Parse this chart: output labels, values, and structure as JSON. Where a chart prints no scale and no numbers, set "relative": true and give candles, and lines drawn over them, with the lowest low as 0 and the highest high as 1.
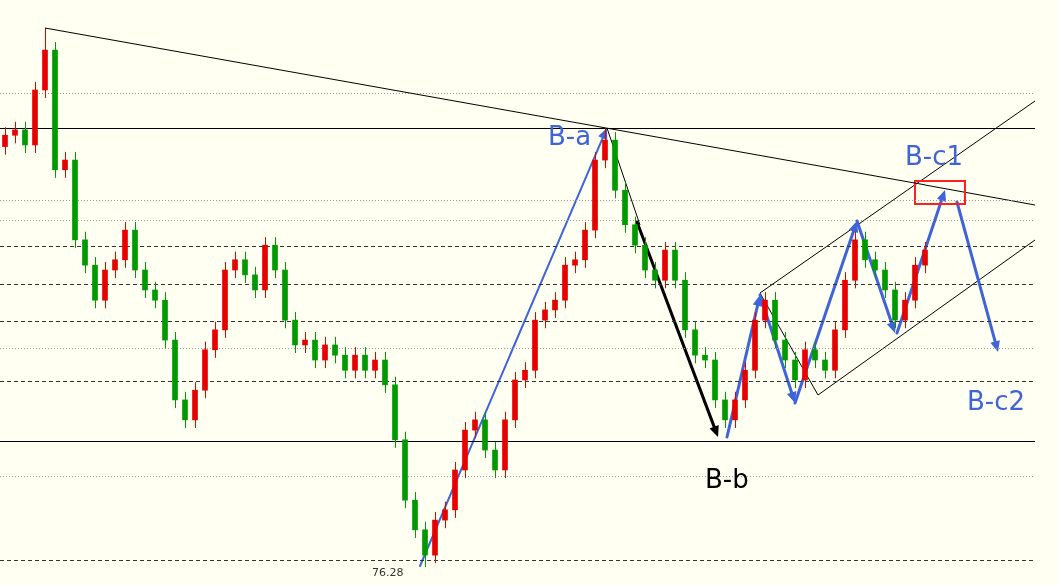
{
  "chart_data": {
    "type": "candlestick",
    "relative": true,
    "legend": false,
    "tick_labels": false,
    "colors": [
      "#e60000",
      "#e60000",
      "#009a00",
      "#e60000",
      "#e60000",
      "#009a00",
      "#e60000",
      "#009a00",
      "#009a00",
      "#009a00",
      "#e60000",
      "#e60000",
      "#e60000",
      "#009a00",
      "#009a00",
      "#009a00",
      "#009a00",
      "#009a00",
      "#009a00",
      "#e60000",
      "#e60000",
      "#e60000",
      "#e60000",
      "#e60000",
      "#009a00",
      "#009a00",
      "#e60000",
      "#009a00",
      "#009a00",
      "#009a00",
      "#e60000",
      "#009a00",
      "#e60000",
      "#009a00",
      "#009a00",
      "#e60000",
      "#009a00",
      "#e60000",
      "#009a00",
      "#009a00",
      "#009a00",
      "#009a00",
      "#009a00",
      "#e60000",
      "#e60000",
      "#e60000",
      "#e60000",
      "#e60000",
      "#009a00",
      "#009a00",
      "#e60000",
      "#e60000",
      "#e60000",
      "#e60000",
      "#e60000",
      "#e60000",
      "#e60000",
      "#e60000",
      "#e60000",
      "#e60000",
      "#e60000",
      "#009a00",
      "#009a00",
      "#009a00",
      "#009a00",
      "#009a00",
      "#e60000",
      "#009a00",
      "#009a00",
      "#009a00",
      "#009a00",
      "#009a00",
      "#009a00",
      "#e60000",
      "#e60000",
      "#e60000",
      "#e60000",
      "#009a00",
      "#009a00",
      "#009a00",
      "#e60000",
      "#009a00",
      "#009a00",
      "#e60000",
      "#e60000",
      "#e60000",
      "#009a00",
      "#009a00",
      "#009a00",
      "#009a00",
      "#e60000",
      "#e60000",
      "#e60000"
    ],
    "categories": [
      null,
      null,
      null,
      null,
      null,
      null,
      null,
      null,
      null,
      null,
      null,
      null,
      null,
      null,
      null,
      null,
      null,
      null,
      null,
      null,
      null,
      null,
      null,
      null,
      null,
      null,
      null,
      null,
      null,
      null,
      null,
      null,
      null,
      null,
      null,
      null,
      null,
      null,
      null,
      null,
      null,
      null,
      null,
      null,
      null,
      null,
      null,
      null,
      null,
      null,
      null,
      null,
      null,
      null,
      null,
      null,
      null,
      null,
      null,
      null,
      null,
      null,
      null,
      null,
      null,
      null,
      null,
      null,
      null,
      null,
      null,
      null,
      null,
      null,
      null,
      null,
      null,
      null,
      null,
      null,
      null,
      null,
      null,
      null,
      null,
      null,
      null,
      null,
      null,
      null,
      null,
      null,
      null
    ],
    "ohlc": [
      [
        0.78,
        0.816,
        0.765,
        0.801
      ],
      [
        0.801,
        0.826,
        0.786,
        0.811
      ],
      [
        0.811,
        0.826,
        0.768,
        0.783
      ],
      [
        0.783,
        0.9,
        0.768,
        0.885
      ],
      [
        0.885,
        1,
        0.87,
        0.959
      ],
      [
        0.959,
        0.974,
        0.722,
        0.737
      ],
      [
        0.737,
        0.77,
        0.722,
        0.755
      ],
      [
        0.755,
        0.77,
        0.592,
        0.607
      ],
      [
        0.607,
        0.622,
        0.545,
        0.56
      ],
      [
        0.56,
        0.575,
        0.48,
        0.495
      ],
      [
        0.495,
        0.566,
        0.48,
        0.551
      ],
      [
        0.551,
        0.585,
        0.536,
        0.57
      ],
      [
        0.57,
        0.64,
        0.555,
        0.625
      ],
      [
        0.625,
        0.64,
        0.536,
        0.551
      ],
      [
        0.551,
        0.566,
        0.499,
        0.514
      ],
      [
        0.514,
        0.529,
        0.48,
        0.495
      ],
      [
        0.495,
        0.51,
        0.406,
        0.421
      ],
      [
        0.421,
        0.436,
        0.295,
        0.31
      ],
      [
        0.31,
        0.325,
        0.258,
        0.273
      ],
      [
        0.273,
        0.343,
        0.258,
        0.328
      ],
      [
        0.328,
        0.418,
        0.313,
        0.403
      ],
      [
        0.403,
        0.455,
        0.388,
        0.44
      ],
      [
        0.44,
        0.566,
        0.425,
        0.551
      ],
      [
        0.551,
        0.585,
        0.536,
        0.57
      ],
      [
        0.57,
        0.585,
        0.527,
        0.542
      ],
      [
        0.542,
        0.557,
        0.499,
        0.514
      ],
      [
        0.514,
        0.612,
        0.499,
        0.597
      ],
      [
        0.597,
        0.612,
        0.536,
        0.551
      ],
      [
        0.551,
        0.566,
        0.443,
        0.458
      ],
      [
        0.458,
        0.473,
        0.397,
        0.412
      ],
      [
        0.412,
        0.436,
        0.397,
        0.421
      ],
      [
        0.421,
        0.436,
        0.369,
        0.384
      ],
      [
        0.384,
        0.427,
        0.369,
        0.412
      ],
      [
        0.412,
        0.427,
        0.378,
        0.393
      ],
      [
        0.393,
        0.408,
        0.35,
        0.365
      ],
      [
        0.365,
        0.408,
        0.35,
        0.393
      ],
      [
        0.393,
        0.408,
        0.35,
        0.365
      ],
      [
        0.365,
        0.399,
        0.35,
        0.384
      ],
      [
        0.384,
        0.399,
        0.323,
        0.338
      ],
      [
        0.338,
        0.353,
        0.221,
        0.236
      ],
      [
        0.236,
        0.251,
        0.109,
        0.124
      ],
      [
        0.124,
        0.139,
        0.054,
        0.069
      ],
      [
        0.069,
        0.084,
        0,
        0.022
      ],
      [
        0.022,
        0.102,
        0.007,
        0.087
      ],
      [
        0.087,
        0.121,
        0.072,
        0.106
      ],
      [
        0.106,
        0.195,
        0.091,
        0.18
      ],
      [
        0.18,
        0.269,
        0.165,
        0.254
      ],
      [
        0.254,
        0.288,
        0.239,
        0.273
      ],
      [
        0.273,
        0.288,
        0.202,
        0.217
      ],
      [
        0.217,
        0.232,
        0.165,
        0.18
      ],
      [
        0.18,
        0.288,
        0.165,
        0.273
      ],
      [
        0.273,
        0.362,
        0.258,
        0.347
      ],
      [
        0.347,
        0.38,
        0.332,
        0.365
      ],
      [
        0.365,
        0.473,
        0.35,
        0.458
      ],
      [
        0.458,
        0.492,
        0.443,
        0.477
      ],
      [
        0.477,
        0.51,
        0.462,
        0.495
      ],
      [
        0.495,
        0.575,
        0.48,
        0.56
      ],
      [
        0.56,
        0.585,
        0.545,
        0.57
      ],
      [
        0.57,
        0.64,
        0.555,
        0.625
      ],
      [
        0.625,
        0.77,
        0.61,
        0.755
      ],
      [
        0.755,
        0.814,
        0.74,
        0.792
      ],
      [
        0.792,
        0.807,
        0.684,
        0.699
      ],
      [
        0.699,
        0.714,
        0.62,
        0.635
      ],
      [
        0.635,
        0.65,
        0.582,
        0.597
      ],
      [
        0.597,
        0.612,
        0.536,
        0.551
      ],
      [
        0.551,
        0.566,
        0.517,
        0.532
      ],
      [
        0.532,
        0.603,
        0.517,
        0.588
      ],
      [
        0.588,
        0.603,
        0.517,
        0.532
      ],
      [
        0.532,
        0.547,
        0.425,
        0.44
      ],
      [
        0.44,
        0.455,
        0.378,
        0.393
      ],
      [
        0.393,
        0.408,
        0.369,
        0.384
      ],
      [
        0.384,
        0.399,
        0.295,
        0.31
      ],
      [
        0.31,
        0.325,
        0.258,
        0.273
      ],
      [
        0.273,
        0.325,
        0.258,
        0.31
      ],
      [
        0.31,
        0.38,
        0.295,
        0.365
      ],
      [
        0.365,
        0.473,
        0.35,
        0.458
      ],
      [
        0.458,
        0.51,
        0.443,
        0.495
      ],
      [
        0.495,
        0.51,
        0.406,
        0.421
      ],
      [
        0.421,
        0.436,
        0.369,
        0.384
      ],
      [
        0.384,
        0.399,
        0.332,
        0.347
      ],
      [
        0.347,
        0.418,
        0.332,
        0.403
      ],
      [
        0.403,
        0.418,
        0.369,
        0.384
      ],
      [
        0.384,
        0.399,
        0.35,
        0.365
      ],
      [
        0.365,
        0.455,
        0.35,
        0.44
      ],
      [
        0.44,
        0.547,
        0.425,
        0.532
      ],
      [
        0.532,
        0.622,
        0.517,
        0.607
      ],
      [
        0.607,
        0.622,
        0.555,
        0.57
      ],
      [
        0.57,
        0.585,
        0.536,
        0.551
      ],
      [
        0.551,
        0.566,
        0.499,
        0.514
      ],
      [
        0.514,
        0.529,
        0.443,
        0.458
      ],
      [
        0.458,
        0.51,
        0.443,
        0.495
      ],
      [
        0.495,
        0.575,
        0.48,
        0.56
      ],
      [
        0.56,
        0.603,
        0.545,
        0.588
      ]
    ],
    "ref_lines": [
      {
        "axis": "y",
        "value": 0.814,
        "line_style": "solid",
        "color": "#000000"
      },
      {
        "axis": "y",
        "value": 0.234,
        "line_style": "solid",
        "color": "#000000"
      },
      {
        "axis": "y",
        "value": 0.596,
        "line_style": "dashed",
        "color": "#333333"
      },
      {
        "axis": "y",
        "value": 0.525,
        "line_style": "dashed",
        "color": "#333333"
      },
      {
        "axis": "y",
        "value": 0.456,
        "line_style": "dashed",
        "color": "#333333"
      },
      {
        "axis": "y",
        "value": 0.345,
        "line_style": "dashed",
        "color": "#333333"
      },
      {
        "axis": "y",
        "value": 0.013,
        "line_style": "dashed",
        "color": "#333333"
      },
      {
        "axis": "y",
        "value": 0.879,
        "line_style": "dotted",
        "color": "#999999"
      },
      {
        "axis": "y",
        "value": 0.681,
        "line_style": "dotted",
        "color": "#999999"
      },
      {
        "axis": "y",
        "value": 0.644,
        "line_style": "dotted",
        "color": "#999999"
      },
      {
        "axis": "y",
        "value": 0.406,
        "line_style": "dotted",
        "color": "#999999"
      },
      {
        "axis": "y",
        "value": 0.169,
        "line_style": "dotted",
        "color": "#999999"
      }
    ],
    "series": [
      {
        "type": "line",
        "color": "#000000",
        "values": [
          null,
          null,
          null,
          null,
          1.0,
          null,
          null,
          null,
          null,
          null,
          null,
          null,
          null,
          null,
          null,
          null,
          null,
          null,
          null,
          null,
          null,
          null,
          null,
          null,
          null,
          null,
          null,
          null,
          null,
          null,
          null,
          null,
          null,
          null,
          null,
          null,
          null,
          null,
          null,
          null,
          null,
          null,
          null,
          null,
          null,
          null,
          null,
          null,
          null,
          null,
          null,
          null,
          null,
          null,
          null,
          null,
          null,
          null,
          null,
          null,
          null,
          null,
          null,
          null,
          null,
          null,
          null,
          null,
          null,
          null,
          null,
          null,
          null,
          null,
          null,
          null,
          null,
          null,
          null,
          null,
          null,
          null,
          null,
          null,
          null,
          null,
          null,
          null,
          null,
          null,
          null,
          null,
          0.709
        ]
      }
    ],
    "annotations": [
      "B-a",
      "B-b",
      "B-c1",
      "B-c2",
      "76.28"
    ]
  }
}
